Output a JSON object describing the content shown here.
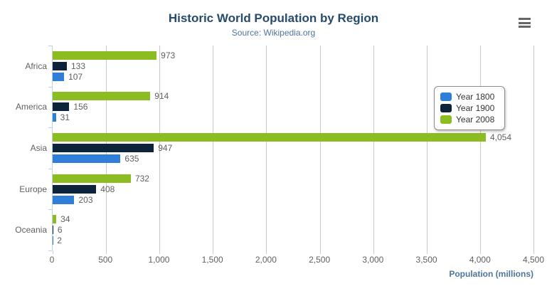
{
  "header": {
    "title": "Historic World Population by Region",
    "subtitle": "Source: Wikipedia.org"
  },
  "icons": {
    "context_menu": "hamburger-menu"
  },
  "chart_data": {
    "type": "bar",
    "title": "Historic World Population by Region",
    "subtitle": "Source: Wikipedia.org",
    "categories": [
      "Africa",
      "America",
      "Asia",
      "Europe",
      "Oceania"
    ],
    "series": [
      {
        "name": "Year 1800",
        "color": "#2f7ed8",
        "values": [
          107,
          31,
          635,
          203,
          2
        ]
      },
      {
        "name": "Year 1900",
        "color": "#0d233a",
        "values": [
          133,
          156,
          947,
          408,
          6
        ]
      },
      {
        "name": "Year 2008",
        "color": "#8bbc21",
        "values": [
          973,
          914,
          4054,
          732,
          34
        ]
      }
    ],
    "series_display_order_top_to_bottom": [
      "Year 2008",
      "Year 1900",
      "Year 1800"
    ],
    "data_labels": {
      "Africa": {
        "Year 2008": "973",
        "Year 1900": "133",
        "Year 1800": "107"
      },
      "America": {
        "Year 2008": "914",
        "Year 1900": "156",
        "Year 1800": "31"
      },
      "Asia": {
        "Year 2008": "4,054",
        "Year 1900": "947",
        "Year 1800": "635"
      },
      "Europe": {
        "Year 2008": "732",
        "Year 1900": "408",
        "Year 1800": "203"
      },
      "Oceania": {
        "Year 2008": "34",
        "Year 1900": "6",
        "Year 1800": "2"
      }
    },
    "xlabel": "Population (millions)",
    "ylabel": "",
    "xlim": [
      0,
      4500
    ],
    "tick_interval": 500,
    "tick_labels": [
      "0",
      "500",
      "1,000",
      "1,500",
      "2,000",
      "2,500",
      "3,000",
      "3,500",
      "4,000",
      "4,500"
    ],
    "grid": true,
    "legend_position": "middle-right",
    "colors": {
      "title": "#274b6d",
      "subtitle": "#4d759e",
      "axis_labels": "#606060",
      "data_labels": "#606060",
      "axis_title": "#4d759e",
      "gridline": "#C9C9C9",
      "axis_line": "#C0D0E0",
      "legend_border": "#8c8c8c",
      "legend_text": "#333333",
      "menu_icon": "#666666"
    }
  }
}
